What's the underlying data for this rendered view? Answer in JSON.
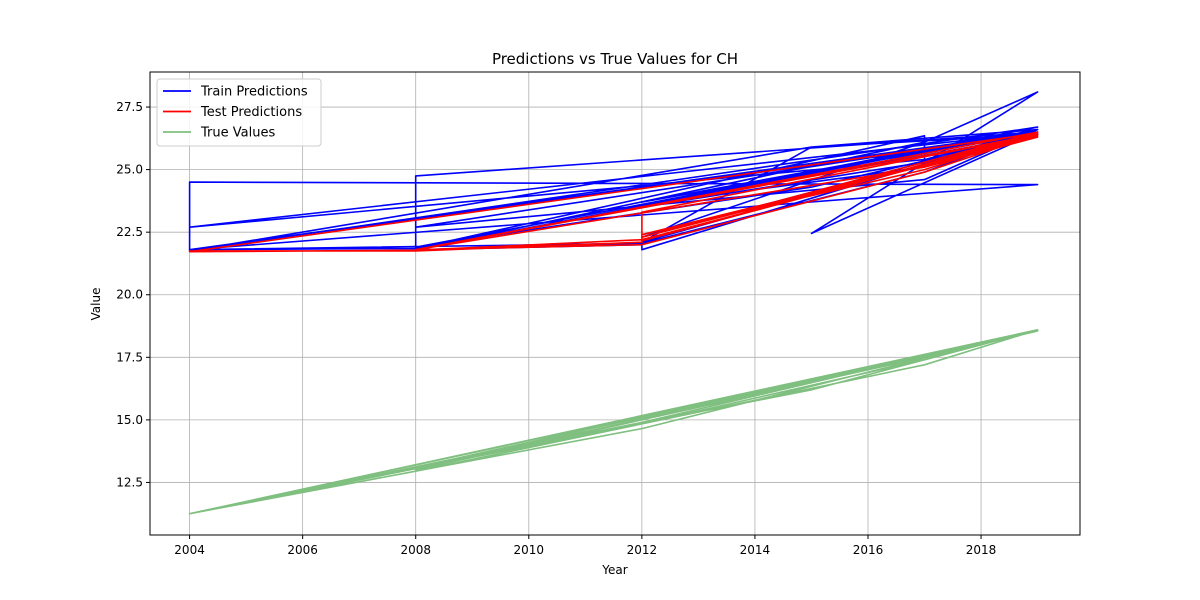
{
  "chart_data": {
    "type": "line",
    "title": "Predictions vs True Values for CH",
    "xlabel": "Year",
    "ylabel": "Value",
    "xlim": [
      2003.3,
      2019.75
    ],
    "ylim": [
      10.4,
      28.9
    ],
    "xticks": [
      2004,
      2006,
      2008,
      2010,
      2012,
      2014,
      2016,
      2018
    ],
    "yticks": [
      12.5,
      15.0,
      17.5,
      20.0,
      22.5,
      25.0,
      27.5
    ],
    "ytick_labels": [
      "12.5",
      "15.0",
      "17.5",
      "20.0",
      "22.5",
      "25.0",
      "27.5"
    ],
    "grid": true,
    "legend_position": "top-left",
    "series": [
      {
        "name": "Train Predictions",
        "color": "#0000ff",
        "x": [
          2004,
          2004,
          2019,
          2004,
          2008,
          2008,
          2019,
          2008,
          2012,
          2012,
          2019,
          2012,
          2015,
          2019,
          2004,
          2008,
          2017,
          2017,
          2012,
          2019,
          2004,
          2015,
          2019,
          2008,
          2017,
          2012,
          2019,
          2004,
          2012,
          2017,
          2019,
          2008,
          2015,
          2019,
          2012,
          2017,
          2017,
          2019,
          2015,
          2019,
          2004,
          2017,
          2019,
          2012,
          2019,
          2008,
          2017,
          2019
        ],
        "y": [
          21.75,
          24.5,
          24.4,
          21.8,
          21.85,
          24.75,
          26.5,
          21.8,
          22.0,
          21.8,
          26.6,
          22.1,
          25.9,
          26.4,
          21.8,
          21.85,
          26.35,
          25.1,
          23.6,
          26.7,
          21.75,
          25.9,
          26.6,
          21.8,
          26.1,
          22.3,
          26.5,
          21.8,
          22.05,
          24.9,
          26.6,
          21.9,
          24.3,
          26.4,
          23.5,
          25.3,
          26.1,
          28.1,
          22.45,
          26.5,
          22.7,
          25.4,
          26.6,
          23.7,
          26.5,
          22.7,
          24.6,
          26.6
        ]
      },
      {
        "name": "Test Predictions",
        "color": "#ff0000",
        "x": [
          2004,
          2008,
          2012,
          2012,
          2019,
          2008,
          2017,
          2019,
          2012,
          2017,
          2019,
          2004,
          2008,
          2012,
          2019,
          2012,
          2019,
          2008,
          2012,
          2017,
          2019,
          2012,
          2019
        ],
        "y": [
          21.75,
          21.75,
          22.1,
          23.3,
          26.4,
          21.8,
          25.1,
          26.3,
          22.4,
          25.0,
          26.45,
          21.72,
          21.78,
          22.2,
          26.35,
          22.3,
          26.5,
          21.8,
          22.0,
          24.9,
          26.4,
          22.15,
          26.45
        ]
      },
      {
        "name": "True Values",
        "color": "#7fbf7f",
        "x": [
          2004,
          2012,
          2019,
          2004,
          2008,
          2017,
          2019,
          2004,
          2012,
          2017,
          2019,
          2008,
          2015,
          2019,
          2004,
          2012,
          2019,
          2008,
          2017,
          2019,
          2004,
          2012,
          2019
        ],
        "y": [
          11.25,
          14.65,
          18.6,
          11.25,
          12.95,
          17.2,
          18.6,
          11.25,
          14.85,
          17.4,
          18.6,
          13.1,
          16.2,
          18.6,
          11.25,
          15.0,
          18.6,
          13.0,
          17.5,
          18.55,
          11.25,
          14.9,
          18.6
        ]
      }
    ]
  }
}
